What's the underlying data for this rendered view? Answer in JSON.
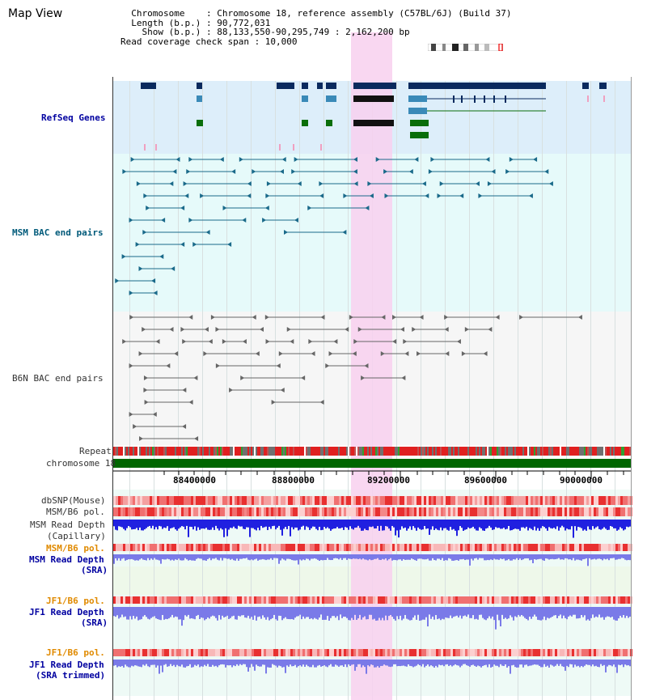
{
  "window": {
    "title": "Map View"
  },
  "info": {
    "line1": "  Chromosome    : Chromosome 18, reference assembly (C57BL/6J) (Build 37)",
    "line2": "  Length (b.p.) : 90,772,031",
    "line3": "    Show (b.p.) : 88,133,550-90,295,749 : 2,162,200 bp",
    "line4": "Read coverage check span : 10,000"
  },
  "tracks": {
    "refseq": "RefSeq Genes",
    "msm_bac": "MSM BAC end pairs",
    "b6n_bac": "B6N BAC end pairs",
    "repeat": "Repeat",
    "chromosome": "chromosome 18",
    "dbsnp": "dbSNP(Mouse)",
    "msm_pol1": "MSM/B6 pol.",
    "msm_depth_cap_1": "MSM Read Depth",
    "msm_depth_cap_2": "(Capillary)",
    "msm_pol2": "MSM/B6 pol.",
    "msm_depth_sra_1": "MSM Read Depth",
    "msm_depth_sra_2": "(SRA)",
    "jf1_pol1": "JF1/B6 pol.",
    "jf1_depth_sra_1": "JF1 Read Depth",
    "jf1_depth_sra_2": "(SRA)",
    "jf1_pol2": "JF1/B6 pol.",
    "jf1_depth_trim_1": "JF1 Read Depth",
    "jf1_depth_trim_2": "(SRA trimmed)"
  },
  "axis": {
    "ticks": [
      "88400000",
      "88800000",
      "89200000",
      "89600000",
      "90000000"
    ]
  },
  "colors": {
    "gene_dark": "#0a2a5e",
    "gene_mid": "#3a8ab8",
    "gene_green": "#0a6e0a",
    "msm_bac": "#1a6a8a",
    "b6n_bac": "#666666",
    "highlight": "#f8d4f0",
    "chromosome": "#006600",
    "depth_blue": "#2020e0",
    "depth_light": "#7a7ae8"
  }
}
